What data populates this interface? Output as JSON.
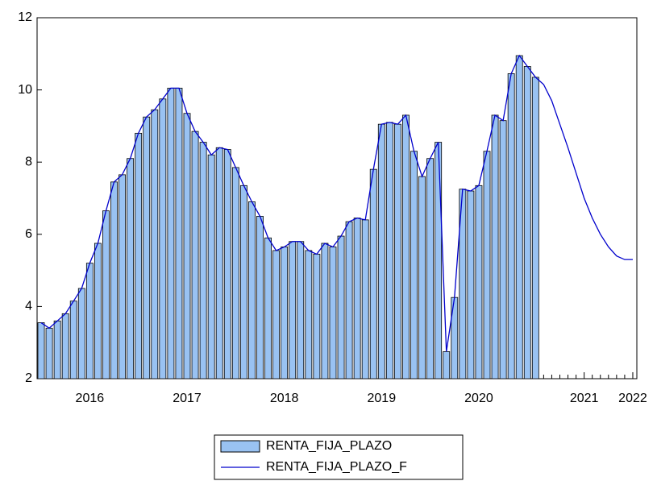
{
  "chart_data": {
    "type": "bar-line",
    "categories": [
      null,
      null,
      null,
      null,
      null,
      null,
      "2016",
      null,
      null,
      null,
      null,
      null,
      null,
      null,
      null,
      null,
      null,
      null,
      "2017",
      null,
      null,
      null,
      null,
      null,
      null,
      null,
      null,
      null,
      null,
      null,
      "2018",
      null,
      null,
      null,
      null,
      null,
      null,
      null,
      null,
      null,
      null,
      null,
      "2019",
      null,
      null,
      null,
      null,
      null,
      null,
      null,
      null,
      null,
      null,
      null,
      "2020",
      null,
      null,
      null,
      null,
      null,
      null,
      null,
      null,
      null,
      null,
      null,
      null,
      "2021",
      null,
      null,
      null,
      null,
      null,
      "2022"
    ],
    "series": [
      {
        "name": "RENTA_FIJA_PLAZO",
        "type": "bar",
        "color": "#99c2f2",
        "values": [
          3.55,
          3.4,
          3.6,
          3.8,
          4.15,
          4.5,
          5.2,
          5.75,
          6.65,
          7.45,
          7.65,
          8.1,
          8.8,
          9.25,
          9.45,
          9.75,
          10.05,
          10.05,
          9.35,
          8.85,
          8.55,
          8.2,
          8.4,
          8.35,
          7.85,
          7.35,
          6.9,
          6.5,
          5.9,
          5.55,
          5.65,
          5.8,
          5.8,
          5.55,
          5.45,
          5.75,
          5.65,
          5.95,
          6.35,
          6.45,
          6.4,
          7.8,
          9.05,
          9.1,
          9.05,
          9.3,
          8.3,
          7.6,
          8.1,
          8.55,
          2.75,
          4.25,
          7.25,
          7.2,
          7.35,
          8.3,
          9.3,
          9.15,
          10.45,
          10.95,
          10.65,
          10.35,
          null,
          null,
          null,
          null,
          null,
          null,
          null,
          null,
          null,
          null,
          null,
          null
        ]
      },
      {
        "name": "RENTA_FIJA_PLAZO_F",
        "type": "line",
        "color": "#0000cc",
        "values": [
          3.55,
          3.4,
          3.6,
          3.8,
          4.15,
          4.5,
          5.2,
          5.75,
          6.65,
          7.45,
          7.65,
          8.1,
          8.8,
          9.25,
          9.45,
          9.75,
          10.05,
          10.05,
          9.35,
          8.85,
          8.55,
          8.2,
          8.4,
          8.35,
          7.85,
          7.35,
          6.9,
          6.5,
          5.9,
          5.55,
          5.65,
          5.8,
          5.8,
          5.55,
          5.45,
          5.75,
          5.65,
          5.95,
          6.35,
          6.45,
          6.4,
          7.8,
          9.05,
          9.1,
          9.05,
          9.3,
          8.3,
          7.6,
          8.1,
          8.55,
          2.75,
          4.25,
          7.25,
          7.2,
          7.35,
          8.3,
          9.3,
          9.15,
          10.45,
          10.95,
          10.65,
          10.35,
          10.15,
          9.7,
          9.05,
          8.4,
          7.7,
          7.0,
          6.45,
          6.0,
          5.65,
          5.4,
          5.3,
          5.3
        ]
      }
    ],
    "ylim": [
      2,
      12
    ],
    "yticks": [
      2,
      4,
      6,
      8,
      10,
      12
    ],
    "grid": false,
    "legend": "bottom"
  }
}
